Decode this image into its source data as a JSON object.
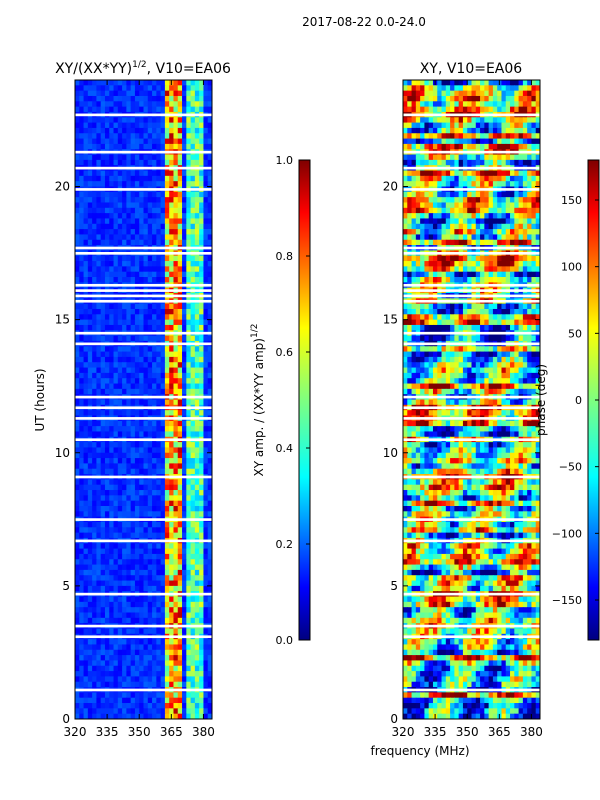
{
  "suptitle": "2017-08-22 0.0-24.0",
  "chart_data": [
    {
      "type": "heatmap",
      "title_main": "XY/(XX*YY)",
      "title_sup": "1/2",
      "title_rest": ", V10=EA06",
      "xlabel": "",
      "ylabel": "UT (hours)",
      "xlim": [
        320,
        384
      ],
      "ylim": [
        0,
        24
      ],
      "xticks": [
        "320",
        "335",
        "350",
        "365",
        "380"
      ],
      "xtick_values": [
        320,
        335,
        350,
        365,
        380
      ],
      "yticks": [
        "0",
        "5",
        "10",
        "15",
        "20"
      ],
      "ytick_values": [
        0,
        5,
        10,
        15,
        20
      ],
      "colorbar": {
        "label_main": "XY amp. / (XX*YY amp)",
        "label_sup": "1/2",
        "range": [
          0.0,
          1.0
        ],
        "ticks": [
          "0.0",
          "0.2",
          "0.4",
          "0.6",
          "0.8",
          "1.0"
        ],
        "tick_values": [
          0.0,
          0.2,
          0.4,
          0.6,
          0.8,
          1.0
        ]
      }
    },
    {
      "type": "heatmap",
      "title": "XY, V10=EA06",
      "xlabel": "frequency (MHz)",
      "ylabel": "",
      "xlim": [
        320,
        384
      ],
      "ylim": [
        0,
        24
      ],
      "xticks": [
        "320",
        "335",
        "350",
        "365",
        "380"
      ],
      "xtick_values": [
        320,
        335,
        350,
        365,
        380
      ],
      "yticks": [
        "0",
        "5",
        "10",
        "15",
        "20"
      ],
      "ytick_values": [
        0,
        5,
        10,
        15,
        20
      ],
      "colorbar": {
        "label": "phase (deg)",
        "range": [
          -180,
          180
        ],
        "ticks": [
          "−150",
          "−100",
          "−50",
          "0",
          "50",
          "100",
          "150"
        ],
        "tick_values": [
          -150,
          -100,
          -50,
          0,
          50,
          100,
          150
        ]
      }
    }
  ],
  "colors": {
    "jet": [
      "#00007f",
      "#0000ff",
      "#007fff",
      "#00ffff",
      "#7fff7f",
      "#ffff00",
      "#ff7f00",
      "#ff0000",
      "#7f0000"
    ]
  }
}
